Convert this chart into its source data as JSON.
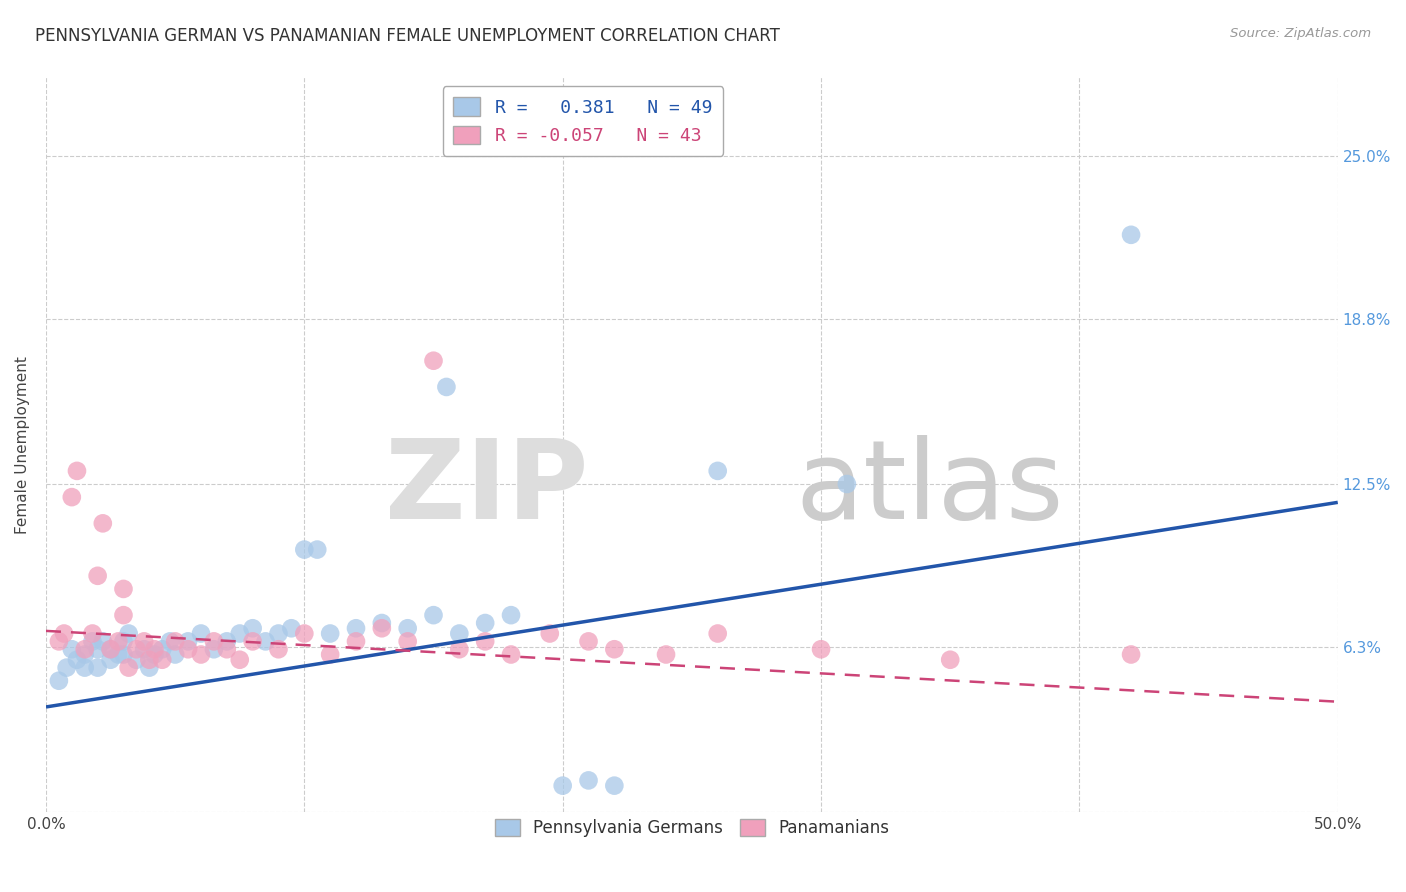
{
  "title": "PENNSYLVANIA GERMAN VS PANAMANIAN FEMALE UNEMPLOYMENT CORRELATION CHART",
  "source": "Source: ZipAtlas.com",
  "ylabel": "Female Unemployment",
  "xlim": [
    0.0,
    0.5
  ],
  "ylim": [
    0.0,
    0.28
  ],
  "yticks": [
    0.0,
    0.063,
    0.125,
    0.188,
    0.25
  ],
  "ytick_labels": [
    "",
    "6.3%",
    "12.5%",
    "18.8%",
    "25.0%"
  ],
  "xticks": [
    0.0,
    0.1,
    0.2,
    0.3,
    0.4,
    0.5
  ],
  "xtick_labels": [
    "0.0%",
    "",
    "",
    "",
    "",
    "50.0%"
  ],
  "bg_color": "#ffffff",
  "blue_color": "#a8c8e8",
  "pink_color": "#f0a0bc",
  "blue_line_color": "#2255aa",
  "pink_line_color": "#cc4477",
  "legend_series_blue": "Pennsylvania Germans",
  "legend_series_pink": "Panamanians",
  "watermark_zip": "ZIP",
  "watermark_atlas": "atlas",
  "blue_points_x": [
    0.005,
    0.008,
    0.01,
    0.012,
    0.015,
    0.015,
    0.018,
    0.02,
    0.02,
    0.022,
    0.025,
    0.025,
    0.028,
    0.03,
    0.03,
    0.032,
    0.035,
    0.038,
    0.04,
    0.042,
    0.045,
    0.048,
    0.05,
    0.055,
    0.06,
    0.065,
    0.07,
    0.075,
    0.08,
    0.085,
    0.09,
    0.095,
    0.1,
    0.105,
    0.11,
    0.12,
    0.13,
    0.14,
    0.15,
    0.155,
    0.16,
    0.17,
    0.18,
    0.2,
    0.21,
    0.22,
    0.26,
    0.31,
    0.42
  ],
  "blue_points_y": [
    0.05,
    0.055,
    0.062,
    0.058,
    0.055,
    0.06,
    0.065,
    0.055,
    0.062,
    0.065,
    0.058,
    0.062,
    0.06,
    0.06,
    0.065,
    0.068,
    0.058,
    0.062,
    0.055,
    0.06,
    0.062,
    0.065,
    0.06,
    0.065,
    0.068,
    0.062,
    0.065,
    0.068,
    0.07,
    0.065,
    0.068,
    0.07,
    0.1,
    0.1,
    0.068,
    0.07,
    0.072,
    0.07,
    0.075,
    0.162,
    0.068,
    0.072,
    0.075,
    0.01,
    0.012,
    0.01,
    0.13,
    0.125,
    0.22
  ],
  "pink_points_x": [
    0.005,
    0.007,
    0.01,
    0.012,
    0.015,
    0.018,
    0.02,
    0.022,
    0.025,
    0.028,
    0.03,
    0.03,
    0.032,
    0.035,
    0.038,
    0.04,
    0.042,
    0.045,
    0.05,
    0.055,
    0.06,
    0.065,
    0.07,
    0.075,
    0.08,
    0.09,
    0.1,
    0.11,
    0.12,
    0.13,
    0.14,
    0.15,
    0.16,
    0.17,
    0.18,
    0.195,
    0.21,
    0.22,
    0.24,
    0.26,
    0.3,
    0.35,
    0.42
  ],
  "pink_points_y": [
    0.065,
    0.068,
    0.12,
    0.13,
    0.062,
    0.068,
    0.09,
    0.11,
    0.062,
    0.065,
    0.075,
    0.085,
    0.055,
    0.062,
    0.065,
    0.058,
    0.062,
    0.058,
    0.065,
    0.062,
    0.06,
    0.065,
    0.062,
    0.058,
    0.065,
    0.062,
    0.068,
    0.06,
    0.065,
    0.07,
    0.065,
    0.172,
    0.062,
    0.065,
    0.06,
    0.068,
    0.065,
    0.062,
    0.06,
    0.068,
    0.062,
    0.058,
    0.06
  ],
  "blue_trend_x": [
    0.0,
    0.5
  ],
  "blue_trend_y": [
    0.04,
    0.118
  ],
  "pink_trend_x": [
    0.0,
    0.5
  ],
  "pink_trend_y": [
    0.069,
    0.042
  ]
}
